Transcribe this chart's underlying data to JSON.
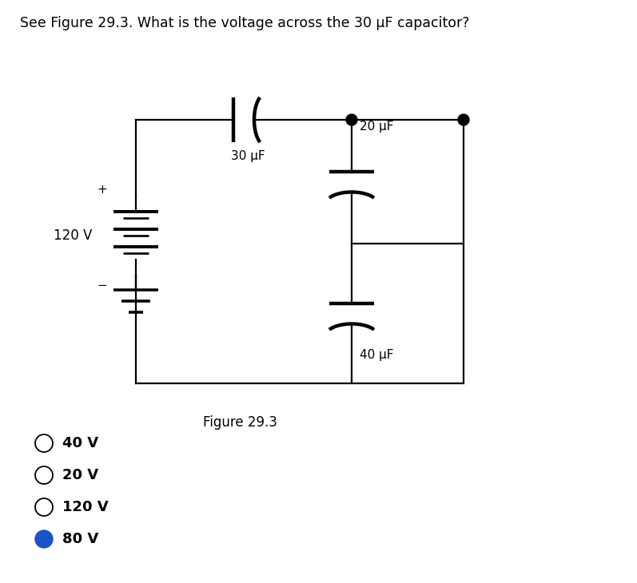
{
  "title": "See Figure 29.3. What is the voltage across the 30 μF capacitor?",
  "title_fontsize": 12.5,
  "figure_label": "Figure 29.3",
  "choices": [
    "40 V",
    "20 V",
    "120 V",
    "80 V"
  ],
  "correct_index": 3,
  "bg_color": "#ffffff",
  "text_color": "#000000",
  "line_color": "#000000",
  "line_width": 1.6,
  "cap_30_label": "30 μF",
  "cap_20_label": "20 μF",
  "cap_40_label": "40 μF",
  "voltage_label": "120 V",
  "plus_sign": "+",
  "minus_sign": "−"
}
